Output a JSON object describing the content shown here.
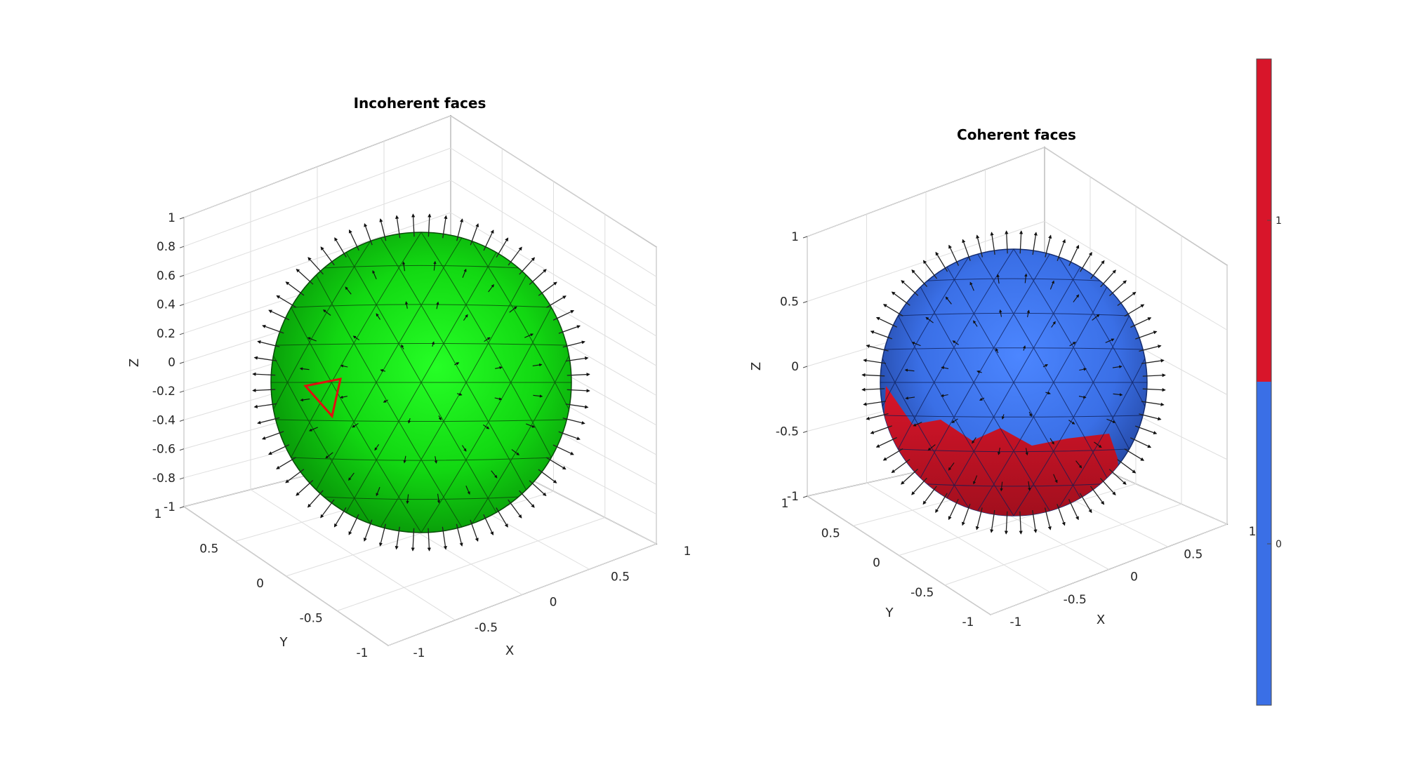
{
  "chart_data": [
    {
      "type": "3d-mesh",
      "title": "Incoherent faces",
      "xlabel": "X",
      "ylabel": "Y",
      "zlabel": "Z",
      "xlim": [
        -1,
        1
      ],
      "ylim": [
        -1,
        1
      ],
      "zlim": [
        -1,
        1
      ],
      "x_ticks": [
        "-1",
        "-0.5",
        "0",
        "0.5",
        "1"
      ],
      "y_ticks": [
        "-1",
        "-0.5",
        "0",
        "0.5",
        "1"
      ],
      "z_ticks": [
        "-1",
        "-0.8",
        "-0.6",
        "-0.4",
        "-0.2",
        "0",
        "0.2",
        "0.4",
        "0.6",
        "0.8",
        "1"
      ],
      "surface": "unit sphere (triangulated)",
      "face_color": "#00e000",
      "highlight_color": "#e01010",
      "grid": true,
      "normals_shown": true
    },
    {
      "type": "3d-mesh",
      "title": "Coherent faces",
      "xlabel": "X",
      "ylabel": "Y",
      "zlabel": "Z",
      "xlim": [
        -1,
        1
      ],
      "ylim": [
        -1,
        1
      ],
      "zlim": [
        -1,
        1
      ],
      "x_ticks": [
        "-1",
        "-0.5",
        "0",
        "0.5",
        "1"
      ],
      "y_ticks": [
        "-1",
        "-0.5",
        "0",
        "0.5",
        "1"
      ],
      "z_ticks": [
        "-1",
        "-0.5",
        "0",
        "0.5",
        "1"
      ],
      "surface": "unit sphere (triangulated)",
      "categories": [
        0,
        1
      ],
      "category_colors": [
        "#3a6fe6",
        "#d8152a"
      ],
      "grid": true,
      "normals_shown": true
    }
  ],
  "colorbar": {
    "ticks": [
      "0",
      "1"
    ],
    "colors": [
      "#3a6fe6",
      "#d8152a"
    ]
  }
}
